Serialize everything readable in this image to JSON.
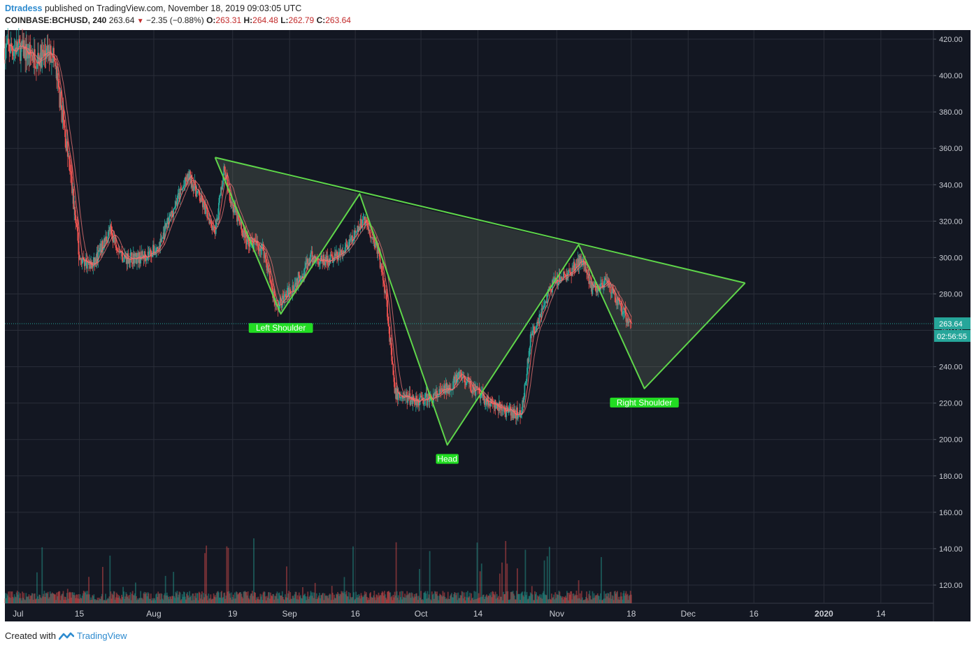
{
  "header": {
    "username": "Dtradess",
    "published_text": "published on TradingView.com, November 18, 2019 09:03:05 UTC",
    "symbol": "COINBASE:BCHUSD, 240",
    "last_price": "263.64",
    "change": "−2.35 (−0.88%)",
    "open_label": "O:",
    "open": "263.31",
    "high_label": "H:",
    "high": "264.48",
    "low_label": "L:",
    "low": "262.79",
    "close_label": "C:",
    "close": "263.64"
  },
  "footer": {
    "created_with": "Created with",
    "brand": "TradingView"
  },
  "colors": {
    "background": "#131722",
    "grid": "#2a2e39",
    "up": "#26a69a",
    "down": "#ef5350",
    "pattern": "#5fd64a",
    "label_bg": "#22dd22",
    "price_tag": "#26a69a"
  },
  "chart_data": {
    "type": "candlestick",
    "price_axis": {
      "range": [
        110,
        425
      ],
      "ticks": [
        120,
        140,
        160,
        180,
        200,
        220,
        240,
        260,
        280,
        300,
        320,
        340,
        360,
        380,
        400,
        420
      ],
      "tick_labels": [
        "120.00",
        "140.00",
        "160.00",
        "180.00",
        "200.00",
        "220.00",
        "240.00",
        "260.00",
        "280.00",
        "300.00",
        "320.00",
        "340.00",
        "360.00",
        "380.00",
        "400.00",
        "420.00"
      ]
    },
    "time_axis": {
      "range": [
        "2019-06-28",
        "2020-01-26"
      ],
      "ticks": [
        {
          "date": "2019-07-01",
          "label": "Jul"
        },
        {
          "date": "2019-07-15",
          "label": "15"
        },
        {
          "date": "2019-08-01",
          "label": "Aug"
        },
        {
          "date": "2019-08-19",
          "label": "19"
        },
        {
          "date": "2019-09-01",
          "label": "Sep"
        },
        {
          "date": "2019-09-16",
          "label": "16"
        },
        {
          "date": "2019-10-01",
          "label": "Oct"
        },
        {
          "date": "2019-10-14",
          "label": "14"
        },
        {
          "date": "2019-11-01",
          "label": "Nov"
        },
        {
          "date": "2019-11-18",
          "label": "18"
        },
        {
          "date": "2019-12-01",
          "label": "Dec"
        },
        {
          "date": "2019-12-16",
          "label": "16"
        },
        {
          "date": "2020-01-01",
          "label": "2020"
        },
        {
          "date": "2020-01-14",
          "label": "14"
        }
      ]
    },
    "price_path": [
      [
        "2019-07-01",
        415
      ],
      [
        "2019-07-05",
        410
      ],
      [
        "2019-07-09",
        412
      ],
      [
        "2019-07-11",
        380
      ],
      [
        "2019-07-13",
        345
      ],
      [
        "2019-07-15",
        300
      ],
      [
        "2019-07-18",
        295
      ],
      [
        "2019-07-22",
        315
      ],
      [
        "2019-07-25",
        300
      ],
      [
        "2019-07-29",
        300
      ],
      [
        "2019-08-02",
        305
      ],
      [
        "2019-08-06",
        330
      ],
      [
        "2019-08-09",
        345
      ],
      [
        "2019-08-12",
        330
      ],
      [
        "2019-08-15",
        315
      ],
      [
        "2019-08-17",
        348
      ],
      [
        "2019-08-19",
        328
      ],
      [
        "2019-08-22",
        310
      ],
      [
        "2019-08-26",
        305
      ],
      [
        "2019-08-29",
        272
      ],
      [
        "2019-09-02",
        285
      ],
      [
        "2019-09-06",
        300
      ],
      [
        "2019-09-09",
        298
      ],
      [
        "2019-09-13",
        302
      ],
      [
        "2019-09-16",
        312
      ],
      [
        "2019-09-18",
        322
      ],
      [
        "2019-09-21",
        305
      ],
      [
        "2019-09-23",
        280
      ],
      [
        "2019-09-25",
        225
      ],
      [
        "2019-09-29",
        222
      ],
      [
        "2019-10-03",
        222
      ],
      [
        "2019-10-07",
        228
      ],
      [
        "2019-10-10",
        235
      ],
      [
        "2019-10-14",
        225
      ],
      [
        "2019-10-18",
        218
      ],
      [
        "2019-10-22",
        214
      ],
      [
        "2019-10-24",
        215
      ],
      [
        "2019-10-26",
        255
      ],
      [
        "2019-10-28",
        268
      ],
      [
        "2019-10-31",
        285
      ],
      [
        "2019-11-04",
        292
      ],
      [
        "2019-11-07",
        300
      ],
      [
        "2019-11-09",
        283
      ],
      [
        "2019-11-12",
        286
      ],
      [
        "2019-11-15",
        275
      ],
      [
        "2019-11-18",
        263.64
      ]
    ],
    "last_price_label": "263.64",
    "countdown_label": "02:56:55",
    "pattern": {
      "name": "Inverse head and shoulders",
      "neckline": [
        [
          "2019-08-15",
          355
        ],
        [
          "2019-12-14",
          286
        ]
      ],
      "zigzag": [
        [
          "2019-08-15",
          355
        ],
        [
          "2019-08-30",
          269
        ],
        [
          "2019-09-17",
          335
        ],
        [
          "2019-10-07",
          197
        ],
        [
          "2019-11-06",
          307
        ],
        [
          "2019-11-21",
          228
        ],
        [
          "2019-12-14",
          286
        ]
      ],
      "labels": [
        {
          "text": "Left Shoulder",
          "date": "2019-08-30",
          "price": 269
        },
        {
          "text": "Head",
          "date": "2019-10-07",
          "price": 197
        },
        {
          "text": "Right Shoulder",
          "date": "2019-11-21",
          "price": 228
        }
      ]
    }
  }
}
